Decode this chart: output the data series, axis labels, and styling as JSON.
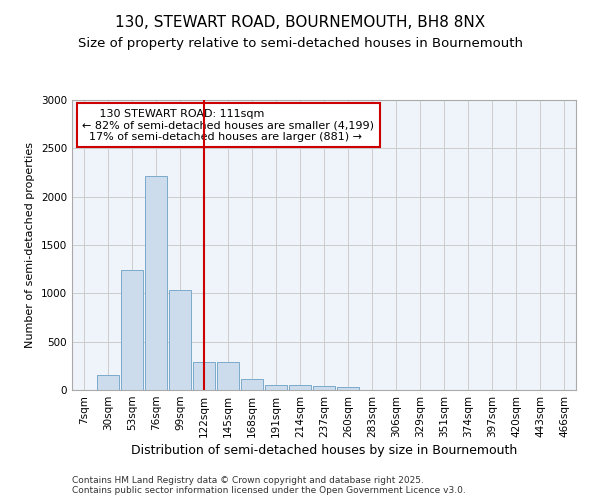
{
  "title1": "130, STEWART ROAD, BOURNEMOUTH, BH8 8NX",
  "title2": "Size of property relative to semi-detached houses in Bournemouth",
  "xlabel": "Distribution of semi-detached houses by size in Bournemouth",
  "ylabel": "Number of semi-detached properties",
  "footer1": "Contains HM Land Registry data © Crown copyright and database right 2025.",
  "footer2": "Contains public sector information licensed under the Open Government Licence v3.0.",
  "categories": [
    "7sqm",
    "30sqm",
    "53sqm",
    "76sqm",
    "99sqm",
    "122sqm",
    "145sqm",
    "168sqm",
    "191sqm",
    "214sqm",
    "237sqm",
    "260sqm",
    "283sqm",
    "306sqm",
    "329sqm",
    "351sqm",
    "374sqm",
    "397sqm",
    "420sqm",
    "443sqm",
    "466sqm"
  ],
  "values": [
    5,
    155,
    1240,
    2210,
    1030,
    290,
    290,
    110,
    55,
    55,
    40,
    30,
    0,
    0,
    0,
    0,
    0,
    0,
    0,
    0,
    0
  ],
  "bar_color": "#ccdcec",
  "bar_edge_color": "#7aaaca",
  "vline_pos": 5.0,
  "vline_color": "#cc0000",
  "vline_label": "130 STEWART ROAD: 111sqm",
  "smaller_pct": "82%",
  "smaller_n": "4,199",
  "larger_pct": "17%",
  "larger_n": "881",
  "annotation_box_color": "#cc0000",
  "ylim": [
    0,
    3000
  ],
  "yticks": [
    0,
    500,
    1000,
    1500,
    2000,
    2500,
    3000
  ],
  "grid_color": "#cccccc",
  "bg_color": "#eef4fa",
  "title_fontsize": 11,
  "subtitle_fontsize": 9.5,
  "axis_label_fontsize": 9,
  "ylabel_fontsize": 8,
  "tick_fontsize": 7.5,
  "footer_fontsize": 6.5,
  "annot_fontsize": 8
}
